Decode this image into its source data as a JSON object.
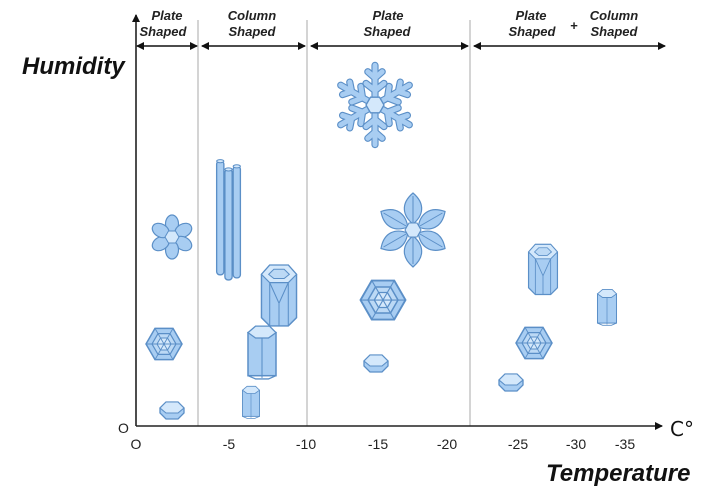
{
  "colors": {
    "crystal_fill": "#a8cdf2",
    "crystal_stroke": "#5b8fc7",
    "crystal_light": "#d4e8fb",
    "divider": "#a8a8a8",
    "axis": "#222222"
  },
  "headers": [
    {
      "line1": "Plate",
      "line2": "Shaped"
    },
    {
      "line1": "Column",
      "line2": "Shaped"
    },
    {
      "line1": "Plate",
      "line2": "Shaped"
    },
    {
      "line1": "Plate",
      "line2": "Shaped"
    },
    {
      "line1": "Column",
      "line2": "Shaped"
    }
  ],
  "plus_sign": "+",
  "axes": {
    "y_title": "Humidity",
    "x_title": "Temperature",
    "origin": "O",
    "unit": "C°",
    "x_ticks": [
      "O",
      "-5",
      "-10",
      "-15",
      "-20",
      "-25",
      "-30",
      "-35"
    ]
  },
  "crystals": [
    {
      "kind": "stellar-dendrite-icon",
      "temp_c": -15.5
    },
    {
      "kind": "plate-flower-icon",
      "temp_c": -1.7
    },
    {
      "kind": "column-needle-icon",
      "temp_c": -5.3
    },
    {
      "kind": "hollow-column-icon",
      "temp_c": -7.6
    },
    {
      "kind": "sector-plate-icon",
      "temp_c": -16.4
    },
    {
      "kind": "hollow-column-icon",
      "temp_c": -26.8
    },
    {
      "kind": "solid-column-icon",
      "temp_c": -32.6
    },
    {
      "kind": "hexagonal-plate-icon",
      "temp_c": -1.3
    },
    {
      "kind": "hexagonal-plate-icon",
      "temp_c": -14.2
    },
    {
      "kind": "hexagonal-plate-icon",
      "temp_c": -26.2
    },
    {
      "kind": "solid-column-icon",
      "temp_c": -6.7
    },
    {
      "kind": "small-plate-icon",
      "temp_c": -14.2
    },
    {
      "kind": "small-plate-icon",
      "temp_c": -24.7
    },
    {
      "kind": "small-plate-icon",
      "temp_c": -1.6
    },
    {
      "kind": "solid-column-icon",
      "temp_c": -6.1
    }
  ]
}
